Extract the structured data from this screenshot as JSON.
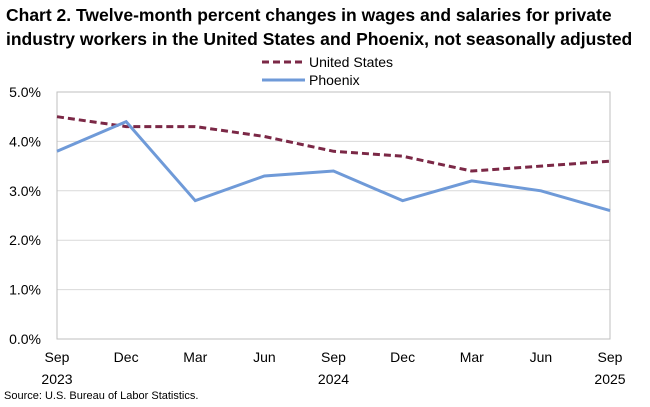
{
  "chart_data": {
    "type": "line",
    "title": "Chart 2. Twelve-month percent changes in wages and salaries for private industry workers in the United States and Phoenix, not seasonally adjusted",
    "categories": [
      "Sep 2023",
      "Dec",
      "Mar",
      "Jun",
      "Sep 2024",
      "Dec",
      "Mar",
      "Jun",
      "Sep 2025"
    ],
    "x_tick_labels": [
      [
        "Sep",
        "2023"
      ],
      [
        "Dec",
        ""
      ],
      [
        "Mar",
        ""
      ],
      [
        "Jun",
        ""
      ],
      [
        "Sep",
        "2024"
      ],
      [
        "Dec",
        ""
      ],
      [
        "Mar",
        ""
      ],
      [
        "Jun",
        ""
      ],
      [
        "Sep",
        "2025"
      ]
    ],
    "y_tick_labels": [
      "0.0%",
      "1.0%",
      "2.0%",
      "3.0%",
      "4.0%",
      "5.0%"
    ],
    "ylim": [
      0,
      5
    ],
    "grid": true,
    "legend": "top-center",
    "series": [
      {
        "name": "United States",
        "color": "#7b2846",
        "style": "dashed",
        "values": [
          4.5,
          4.3,
          4.3,
          4.1,
          3.8,
          3.7,
          3.4,
          3.5,
          3.6
        ]
      },
      {
        "name": "Phoenix",
        "color": "#6f9ad8",
        "style": "solid",
        "values": [
          3.8,
          4.4,
          2.8,
          3.3,
          3.4,
          2.8,
          3.2,
          3.0,
          2.6
        ]
      }
    ]
  },
  "source": "Source: U.S. Bureau of Labor Statistics."
}
